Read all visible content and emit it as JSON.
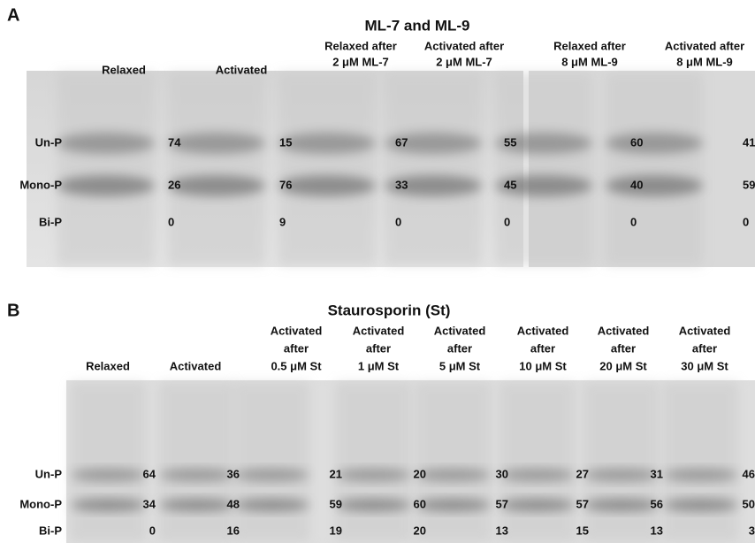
{
  "panels": [
    {
      "label": "A",
      "title": "ML-7 and ML-9",
      "row_labels": [
        "Un-P",
        "Mono-P",
        "Bi-P"
      ],
      "lanes": [
        {
          "header": [
            "Relaxed"
          ],
          "values": [
            74,
            26,
            0
          ]
        },
        {
          "header": [
            "Activated"
          ],
          "values": [
            15,
            76,
            9
          ]
        },
        {
          "header": [
            "Relaxed after",
            "2 μM ML-7"
          ],
          "values": [
            67,
            33,
            0
          ]
        },
        {
          "header": [
            "Activated after",
            "2 μM ML-7"
          ],
          "values": [
            55,
            45,
            0
          ]
        },
        {
          "header": [
            "Relaxed after",
            "8 μM ML-9"
          ],
          "values": [
            60,
            40,
            0
          ]
        },
        {
          "header": [
            "Activated after",
            "8 μM ML-9"
          ],
          "values": [
            41,
            59,
            0
          ]
        }
      ]
    },
    {
      "label": "B",
      "title": "Staurosporin (St)",
      "row_labels": [
        "Un-P",
        "Mono-P",
        "Bi-P"
      ],
      "lanes": [
        {
          "header": [
            "Relaxed"
          ],
          "values": [
            64,
            34,
            0
          ]
        },
        {
          "header": [
            "Activated"
          ],
          "values": [
            36,
            48,
            16
          ]
        },
        {
          "header": [
            "Activated",
            "after",
            "0.5 μM St"
          ],
          "values": [
            21,
            59,
            19
          ]
        },
        {
          "header": [
            "Activated",
            "after",
            "1 μM St"
          ],
          "values": [
            20,
            60,
            20
          ]
        },
        {
          "header": [
            "Activated",
            "after",
            "5 μM St"
          ],
          "values": [
            30,
            57,
            13
          ]
        },
        {
          "header": [
            "Activated",
            "after",
            "10 μM St"
          ],
          "values": [
            27,
            57,
            15
          ]
        },
        {
          "header": [
            "Activated",
            "after",
            "20 μM St"
          ],
          "values": [
            31,
            56,
            13
          ]
        },
        {
          "header": [
            "Activated",
            "after",
            "30 μM St"
          ],
          "values": [
            46,
            50,
            3
          ]
        }
      ]
    }
  ]
}
